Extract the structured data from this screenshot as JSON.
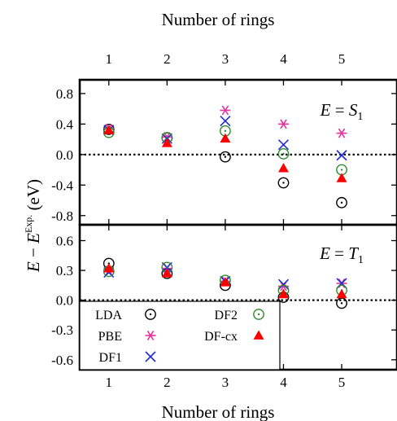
{
  "chart_data": {
    "type": "scatter",
    "x_top_label": "Number of rings",
    "x_bottom_label": "Number of rings",
    "ylabel_parts": {
      "E1": "E",
      "minus": " − ",
      "E2": "E",
      "sup": "Exp.",
      "unit": " (eV)"
    },
    "x_ticks": [
      "1",
      "2",
      "3",
      "4",
      "5"
    ],
    "xlim": [
      0.5,
      5.95
    ],
    "colors": {
      "LDA": "#000000",
      "PBE": "#e6329b",
      "DF1": "#1f2bd6",
      "DF2": "#2f8a2f",
      "DF-cx": "#ff0000"
    },
    "legend": {
      "placement": "lower-left",
      "entries": [
        {
          "key": "LDA",
          "label": "LDA"
        },
        {
          "key": "DF2",
          "label": "DF2"
        },
        {
          "key": "PBE",
          "label": "PBE"
        },
        {
          "key": "DF-cx",
          "label": "DF-cx"
        },
        {
          "key": "DF1",
          "label": "DF1"
        }
      ]
    },
    "panels": [
      {
        "id": "S1",
        "label_parts": {
          "lhs": "E",
          "eq": " = ",
          "sym": "S",
          "sub": "1"
        },
        "ylim": [
          -0.92,
          0.98
        ],
        "yticks": [
          -0.8,
          -0.4,
          0.0,
          0.4,
          0.8
        ],
        "ytick_labels": [
          "-0.8",
          "-0.4",
          "0.0",
          "0.4",
          "0.8"
        ],
        "zero_line": true,
        "series": [
          {
            "key": "LDA",
            "x": [
              1,
              2,
              3,
              4,
              5
            ],
            "y": [
              0.33,
              0.22,
              -0.03,
              -0.37,
              -0.63
            ]
          },
          {
            "key": "PBE",
            "x": [
              1,
              2,
              3,
              4,
              5
            ],
            "y": [
              0.34,
              0.23,
              0.58,
              0.4,
              0.28
            ]
          },
          {
            "key": "DF1",
            "x": [
              1,
              2,
              3,
              4,
              5
            ],
            "y": [
              0.32,
              0.21,
              0.44,
              0.13,
              -0.01
            ]
          },
          {
            "key": "DF2",
            "x": [
              1,
              2,
              3,
              4,
              5
            ],
            "y": [
              0.29,
              0.22,
              0.31,
              0.01,
              -0.2
            ]
          },
          {
            "key": "DF-cx",
            "x": [
              1,
              2,
              3,
              4,
              5
            ],
            "y": [
              0.32,
              0.15,
              0.21,
              -0.18,
              -0.31
            ]
          }
        ]
      },
      {
        "id": "T1",
        "label_parts": {
          "lhs": "E",
          "eq": " = ",
          "sym": "T",
          "sub": "1"
        },
        "ylim": [
          -0.7,
          0.76
        ],
        "yticks": [
          -0.6,
          -0.3,
          0.0,
          0.3,
          0.6
        ],
        "ytick_labels": [
          "-0.6",
          "-0.3",
          "0.0",
          "0.3",
          "0.6"
        ],
        "zero_line": true,
        "series": [
          {
            "key": "LDA",
            "x": [
              1,
              2,
              3,
              4,
              5
            ],
            "y": [
              0.37,
              0.27,
              0.15,
              0.03,
              -0.03
            ]
          },
          {
            "key": "PBE",
            "x": [
              1,
              2,
              3,
              4,
              5
            ],
            "y": [
              0.3,
              0.32,
              0.19,
              0.14,
              0.17
            ]
          },
          {
            "key": "DF1",
            "x": [
              1,
              2,
              3,
              4,
              5
            ],
            "y": [
              0.28,
              0.33,
              0.19,
              0.16,
              0.17
            ]
          },
          {
            "key": "DF2",
            "x": [
              1,
              2,
              3,
              4,
              5
            ],
            "y": [
              0.29,
              0.33,
              0.2,
              0.1,
              0.1
            ]
          },
          {
            "key": "DF-cx",
            "x": [
              1,
              2,
              3,
              4,
              5
            ],
            "y": [
              0.32,
              0.27,
              0.18,
              0.06,
              0.06
            ]
          }
        ]
      }
    ]
  }
}
